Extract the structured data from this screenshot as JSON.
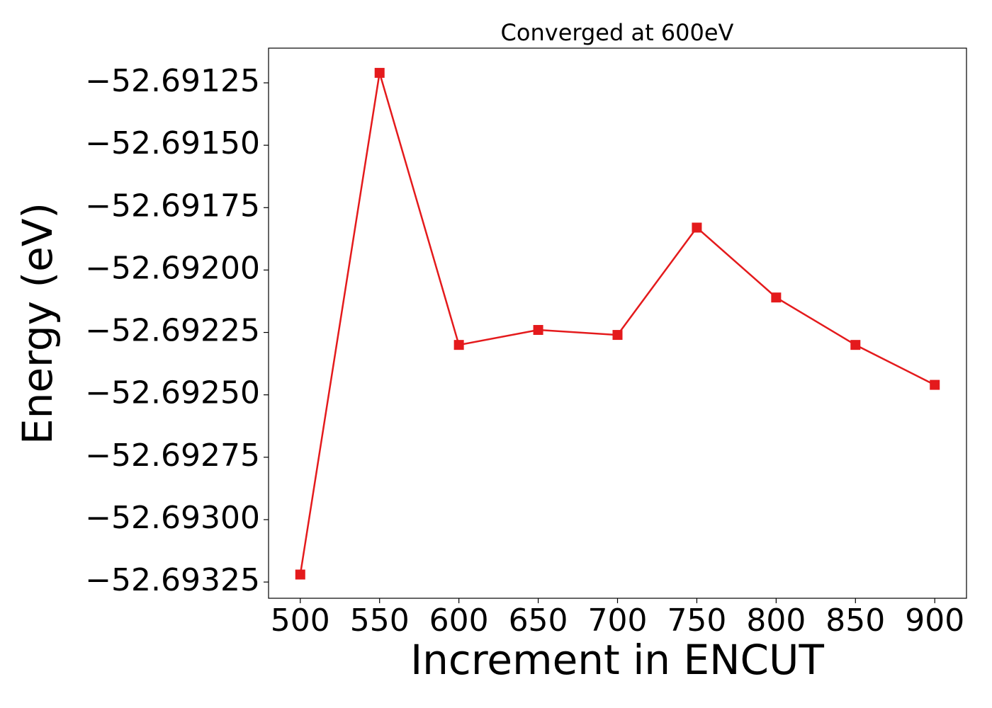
{
  "chart_data": {
    "type": "line",
    "title": "Converged at 600eV",
    "x_label": "Increment in ENCUT",
    "y_label": "Energy (eV)",
    "x": [
      500,
      550,
      600,
      650,
      700,
      750,
      800,
      850,
      900
    ],
    "series": [
      {
        "color": "#e41a1c",
        "marker": "square",
        "values": [
          -52.69322,
          -52.69121,
          -52.6923,
          -52.69224,
          -52.69226,
          -52.69183,
          -52.69211,
          -52.6923,
          -52.69246
        ]
      }
    ],
    "xlim": [
      480,
      920
    ],
    "ylim": [
      -52.693315,
      -52.691111
    ],
    "xticks": [
      500,
      550,
      600,
      650,
      700,
      750,
      800,
      850,
      900
    ],
    "yticks": [
      {
        "value": -52.69125,
        "label": "−52.69125"
      },
      {
        "value": -52.6915,
        "label": "−52.69150"
      },
      {
        "value": -52.69175,
        "label": "−52.69175"
      },
      {
        "value": -52.692,
        "label": "−52.69200"
      },
      {
        "value": -52.69225,
        "label": "−52.69225"
      },
      {
        "value": -52.6925,
        "label": "−52.69250"
      },
      {
        "value": -52.69275,
        "label": "−52.69275"
      },
      {
        "value": -52.693,
        "label": "−52.69300"
      },
      {
        "value": -52.69325,
        "label": "−52.69325"
      }
    ],
    "grid": false
  }
}
